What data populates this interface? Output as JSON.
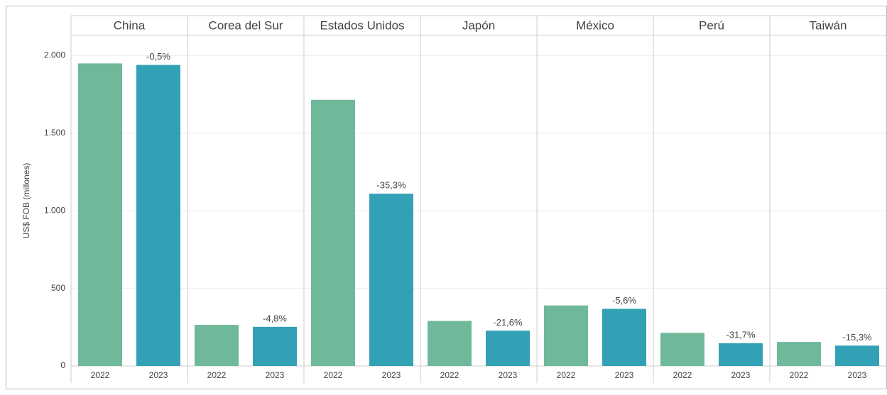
{
  "chart_data": {
    "type": "bar",
    "y_label": "US$ FOB (millones)",
    "groups": [
      "China",
      "Corea del Sur",
      "Estados Unidos",
      "Japón",
      "México",
      "Perú",
      "Taiwán"
    ],
    "categories": [
      "2022",
      "2023"
    ],
    "colors": [
      "#6fb99a",
      "#33a1b5"
    ],
    "values": [
      [
        1950,
        1940
      ],
      [
        265,
        252
      ],
      [
        1715,
        1110
      ],
      [
        290,
        227
      ],
      [
        390,
        368
      ],
      [
        213,
        146
      ],
      [
        155,
        131
      ]
    ],
    "changes": [
      -0.5,
      -4.8,
      -35.3,
      -21.6,
      -5.6,
      -31.7,
      -15.3
    ],
    "change_labels": [
      "-0,5%",
      "-4,8%",
      "-35,3%",
      "-21,6%",
      "-5,6%",
      "-31,7%",
      "-15,3%"
    ],
    "ylim": [
      0,
      2130
    ],
    "yticks": [
      0,
      500,
      {
        "value": 1000,
        "label": "1.000"
      },
      {
        "value": 1500,
        "label": "1.500"
      },
      {
        "value": 2000,
        "label": "2.000"
      }
    ],
    "grid": true
  }
}
